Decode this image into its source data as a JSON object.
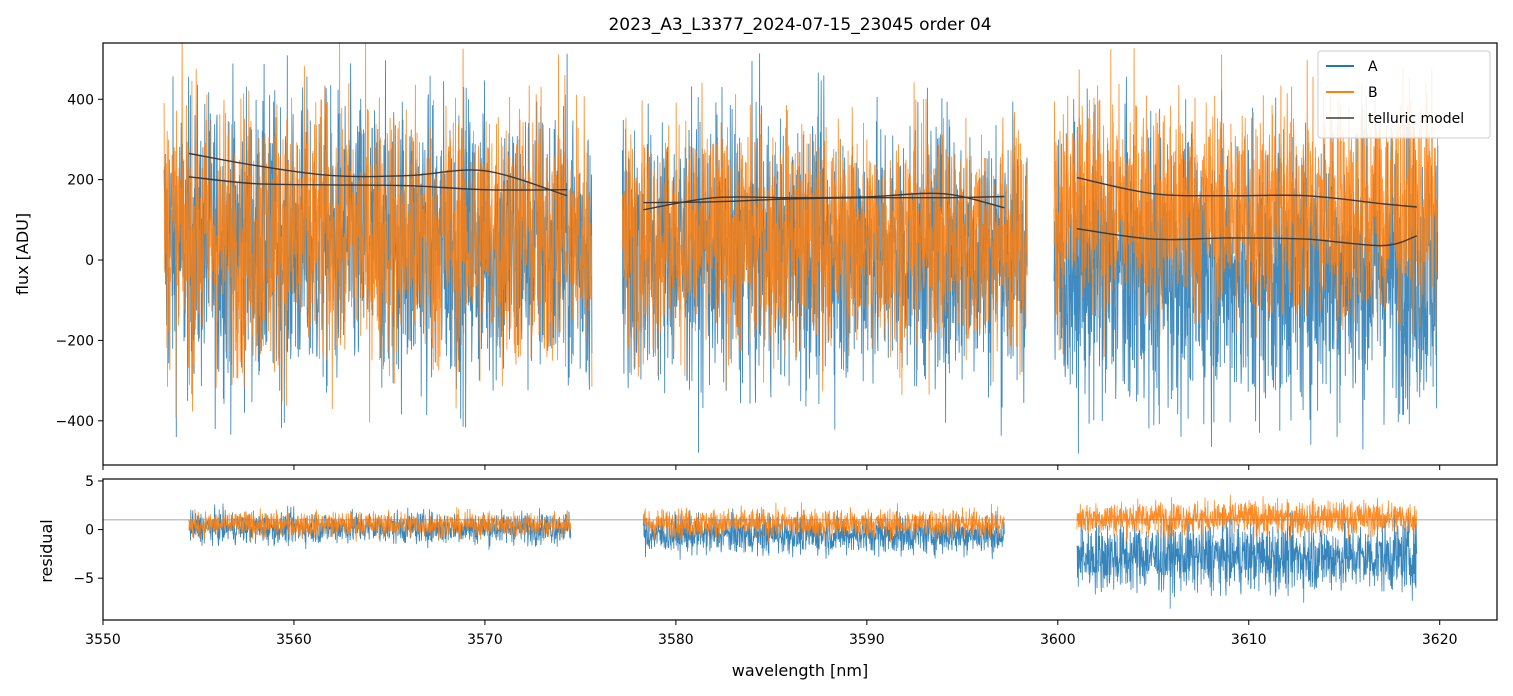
{
  "chart_data": [
    {
      "type": "line",
      "title": "2023_A3_L3377_2024-07-15_23045  order 04",
      "xlabel": "",
      "ylabel": "flux [ADU]",
      "xlim": [
        3550,
        3623
      ],
      "ylim": [
        -510,
        540
      ],
      "yticks": [
        -400,
        -200,
        0,
        200,
        400
      ],
      "yticklabels": [
        "−400",
        "−200",
        "0",
        "200",
        "400"
      ],
      "xticks": [
        3550,
        3560,
        3570,
        3580,
        3590,
        3600,
        3610,
        3620
      ],
      "legend": {
        "placement": "top-right",
        "entries": [
          "A",
          "B",
          "telluric model"
        ]
      },
      "segments": [
        {
          "xrange": [
            3553.2,
            3575.6
          ],
          "A": {
            "center": 40,
            "spread": 330
          },
          "B": {
            "center": 60,
            "spread": 310
          },
          "telluric_model": [
            {
              "x": [
                3554.5,
                3558,
                3562,
                3566,
                3570,
                3574.3
              ],
              "y": [
                265,
                235,
                210,
                210,
                222,
                160
              ]
            },
            {
              "x": [
                3554.5,
                3558,
                3562,
                3566,
                3570,
                3574.3
              ],
              "y": [
                207,
                190,
                187,
                185,
                175,
                175
              ]
            }
          ]
        },
        {
          "xrange": [
            3577.2,
            3598.4
          ],
          "A": {
            "center": 20,
            "spread": 300
          },
          "B": {
            "center": 50,
            "spread": 260
          },
          "telluric_model": [
            {
              "x": [
                3578.3,
                3582,
                3586,
                3590,
                3594,
                3597.2
              ],
              "y": [
                125,
                155,
                155,
                157,
                165,
                130
              ]
            },
            {
              "x": [
                3578.3,
                3582,
                3586,
                3590,
                3594,
                3597.2
              ],
              "y": [
                143,
                145,
                152,
                155,
                155,
                158
              ]
            }
          ]
        },
        {
          "xrange": [
            3599.8,
            3619.9
          ],
          "A": {
            "center": -20,
            "spread": 320
          },
          "B": {
            "center": 120,
            "spread": 260
          },
          "telluric_model": [
            {
              "x": [
                3601,
                3605,
                3609,
                3613,
                3617,
                3618.8
              ],
              "y": [
                205,
                165,
                160,
                160,
                140,
                132
              ]
            },
            {
              "x": [
                3601,
                3605,
                3609,
                3613,
                3617,
                3618.8
              ],
              "y": [
                78,
                52,
                55,
                52,
                36,
                60
              ]
            }
          ]
        }
      ]
    },
    {
      "type": "line",
      "title": "",
      "xlabel": "wavelength [nm]",
      "ylabel": "residual",
      "xlim": [
        3550,
        3623
      ],
      "ylim": [
        -9.3,
        5.2
      ],
      "yticks": [
        -5,
        0,
        5
      ],
      "yticklabels": [
        "−5",
        "0",
        "5"
      ],
      "xticks": [
        3550,
        3560,
        3570,
        3580,
        3590,
        3600,
        3610,
        3620
      ],
      "reference_line": 1,
      "segments": [
        {
          "xrange": [
            3554.5,
            3574.5
          ],
          "A": {
            "center": 0.2,
            "spread": 1.5
          },
          "B": {
            "center": 0.5,
            "spread": 1.2
          }
        },
        {
          "xrange": [
            3578.3,
            3597.2
          ],
          "A": {
            "center": -0.5,
            "spread": 1.8
          },
          "B": {
            "center": 0.6,
            "spread": 1.4
          }
        },
        {
          "xrange": [
            3601,
            3618.8
          ],
          "A": {
            "center": -2.8,
            "spread": 3.2
          },
          "B": {
            "center": 1.2,
            "spread": 1.6
          }
        }
      ]
    }
  ],
  "colors": {
    "A": "#1f77b4",
    "B": "#ff7f0e",
    "telluric": "#3a3a3a",
    "ref": "#888888"
  }
}
